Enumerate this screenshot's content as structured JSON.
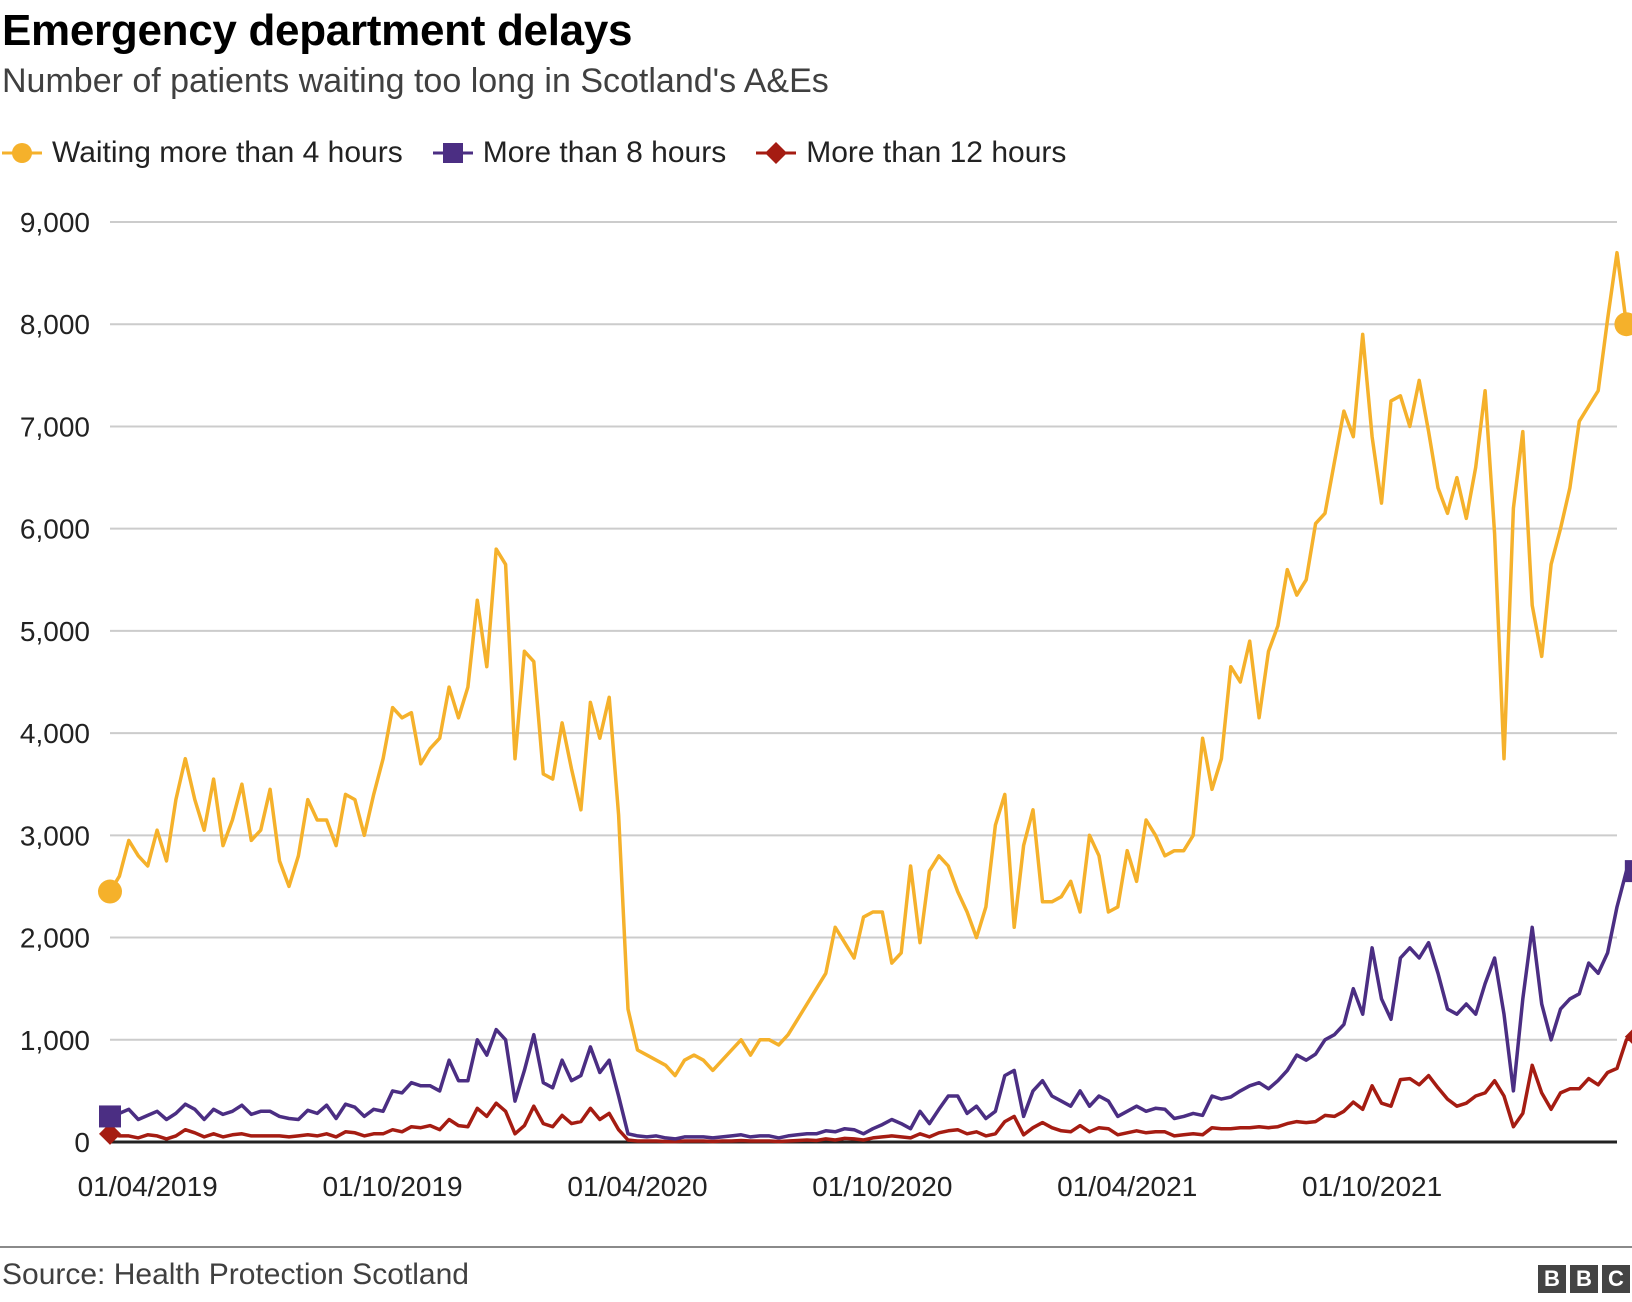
{
  "chart_data": {
    "type": "line",
    "title": "Emergency department delays",
    "subtitle": "Number of patients waiting too long in Scotland's A&Es",
    "xlabel": "",
    "ylabel": "",
    "ylim": [
      0,
      9000
    ],
    "yticks": [
      "0",
      "1,000",
      "2,000",
      "3,000",
      "4,000",
      "5,000",
      "6,000",
      "7,000",
      "8,000",
      "9,000"
    ],
    "ytick_values": [
      0,
      1000,
      2000,
      3000,
      4000,
      5000,
      6000,
      7000,
      8000,
      9000
    ],
    "xticks": [
      "01/04/2019",
      "01/10/2019",
      "01/04/2020",
      "01/10/2020",
      "01/04/2021",
      "01/10/2021"
    ],
    "xtick_index": [
      4,
      30,
      56,
      82,
      108,
      134
    ],
    "n_weeks": 161,
    "grid": true,
    "legend_position": "top-left",
    "series": [
      {
        "name": "Waiting more than 4 hours",
        "color": "#f5b12b",
        "marker": "circle",
        "values": [
          2450,
          2600,
          2950,
          2800,
          2700,
          3050,
          2750,
          3350,
          3750,
          3350,
          3050,
          3550,
          2900,
          3150,
          3500,
          2950,
          3050,
          3450,
          2750,
          2500,
          2800,
          3350,
          3150,
          3150,
          2900,
          3400,
          3350,
          3000,
          3400,
          3750,
          4250,
          4150,
          4200,
          3700,
          3850,
          3950,
          4450,
          4150,
          4450,
          5300,
          4650,
          5800,
          5650,
          3750,
          4800,
          4700,
          3600,
          3550,
          4100,
          3650,
          3250,
          4300,
          3950,
          4350,
          3200,
          1300,
          900,
          850,
          800,
          750,
          650,
          800,
          850,
          800,
          700,
          800,
          900,
          1000,
          850,
          1000,
          1000,
          950,
          1050,
          1200,
          1350,
          1500,
          1650,
          2100,
          1950,
          1800,
          2200,
          2250,
          2250,
          1750,
          1850,
          2700,
          1950,
          2650,
          2800,
          2700,
          2450,
          2250,
          2000,
          2300,
          3100,
          3400,
          2100,
          2900,
          3250,
          2350,
          2350,
          2400,
          2550,
          2250,
          3000,
          2800,
          2250,
          2300,
          2850,
          2550,
          3150,
          3000,
          2800,
          2850,
          2850,
          3000,
          3950,
          3450,
          3750,
          4650,
          4500,
          4900,
          4150,
          4800,
          5050,
          5600,
          5350,
          5500,
          6050,
          6150,
          6650,
          7150,
          6900,
          7900,
          6900,
          6250,
          7250,
          7300,
          7000,
          7450,
          6950,
          6400,
          6150,
          6500,
          6100,
          6600,
          7350,
          5950,
          3750,
          6200,
          6950,
          5250,
          4750,
          5650,
          6000,
          6400,
          7050,
          7200,
          7350,
          8050,
          8700,
          8000
        ]
      },
      {
        "name": "More than 8 hours",
        "color": "#4b2e83",
        "marker": "square",
        "values": [
          250,
          280,
          320,
          220,
          260,
          300,
          220,
          280,
          370,
          320,
          220,
          320,
          270,
          300,
          360,
          270,
          300,
          300,
          250,
          230,
          220,
          310,
          280,
          360,
          230,
          370,
          340,
          250,
          320,
          300,
          500,
          480,
          580,
          550,
          550,
          500,
          800,
          600,
          600,
          1000,
          850,
          1100,
          1000,
          400,
          700,
          1050,
          580,
          530,
          800,
          600,
          650,
          930,
          680,
          800,
          450,
          80,
          60,
          50,
          60,
          40,
          30,
          50,
          50,
          50,
          40,
          50,
          60,
          70,
          50,
          60,
          60,
          40,
          60,
          70,
          80,
          80,
          110,
          100,
          130,
          120,
          80,
          130,
          170,
          220,
          180,
          130,
          300,
          180,
          320,
          450,
          450,
          280,
          350,
          230,
          300,
          650,
          700,
          250,
          500,
          600,
          450,
          400,
          350,
          500,
          350,
          450,
          400,
          250,
          300,
          350,
          300,
          330,
          320,
          230,
          250,
          280,
          260,
          450,
          420,
          440,
          500,
          550,
          580,
          520,
          600,
          700,
          850,
          800,
          860,
          1000,
          1050,
          1150,
          1500,
          1250,
          1900,
          1400,
          1200,
          1800,
          1900,
          1800,
          1950,
          1650,
          1300,
          1250,
          1350,
          1250,
          1550,
          1800,
          1250,
          500,
          1400,
          2100,
          1350,
          1000,
          1300,
          1400,
          1450,
          1750,
          1650,
          1850,
          2300,
          2650,
          2650
        ]
      },
      {
        "name": "More than 12 hours",
        "color": "#a51c12",
        "marker": "diamond",
        "values": [
          80,
          60,
          60,
          40,
          70,
          60,
          30,
          60,
          120,
          90,
          50,
          80,
          50,
          70,
          80,
          60,
          60,
          60,
          60,
          50,
          60,
          70,
          60,
          80,
          50,
          100,
          90,
          60,
          80,
          80,
          120,
          100,
          150,
          140,
          160,
          120,
          220,
          160,
          150,
          330,
          250,
          380,
          300,
          80,
          160,
          350,
          180,
          150,
          260,
          180,
          200,
          330,
          220,
          280,
          120,
          20,
          10,
          10,
          10,
          5,
          5,
          10,
          10,
          10,
          5,
          10,
          10,
          15,
          10,
          10,
          10,
          5,
          10,
          15,
          20,
          15,
          30,
          20,
          35,
          30,
          20,
          40,
          50,
          60,
          50,
          40,
          80,
          50,
          90,
          110,
          120,
          80,
          100,
          60,
          80,
          200,
          250,
          70,
          140,
          190,
          140,
          110,
          100,
          160,
          100,
          140,
          130,
          70,
          90,
          110,
          90,
          100,
          100,
          60,
          70,
          80,
          70,
          140,
          130,
          130,
          140,
          140,
          150,
          140,
          150,
          180,
          200,
          190,
          200,
          260,
          250,
          300,
          390,
          320,
          550,
          380,
          350,
          610,
          620,
          560,
          650,
          530,
          420,
          350,
          380,
          450,
          480,
          600,
          450,
          150,
          280,
          750,
          480,
          320,
          480,
          520,
          520,
          620,
          560,
          680,
          720,
          1000,
          1030
        ]
      }
    ]
  },
  "footer": {
    "source": "Source: Health Protection Scotland",
    "brand_letters": [
      "B",
      "B",
      "C"
    ]
  }
}
